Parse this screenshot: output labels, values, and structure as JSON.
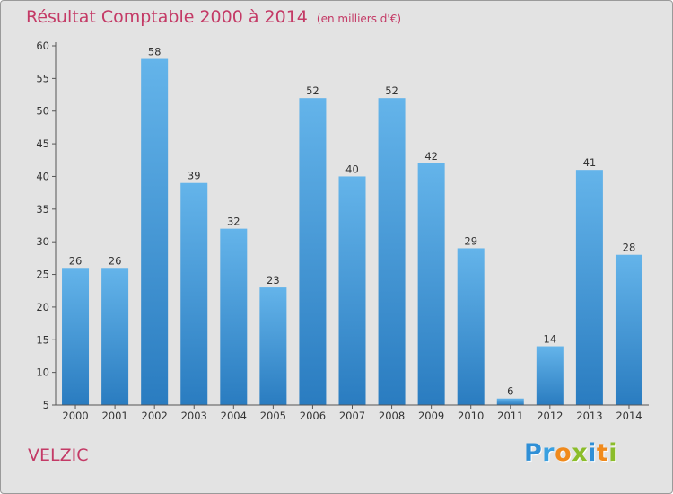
{
  "header": {
    "title": "Résultat Comptable 2000 à 2014",
    "subtitle": "(en milliers d'€)"
  },
  "entity": "VELZIC",
  "logo": {
    "letters": [
      {
        "char": "P",
        "color": "#2f8fd6"
      },
      {
        "char": "r",
        "color": "#3aa0e0"
      },
      {
        "char": "o",
        "color": "#f08a1c"
      },
      {
        "char": "x",
        "color": "#8bbd2a"
      },
      {
        "char": "i",
        "color": "#2f8fd6"
      },
      {
        "char": "t",
        "color": "#f08a1c"
      },
      {
        "char": "i",
        "color": "#8bbd2a"
      }
    ]
  },
  "colors": {
    "bar_top": "#64b4ea",
    "bar_bottom": "#2a7cc0",
    "text": "#333333",
    "accent": "#c43a66"
  },
  "chart_data": {
    "type": "bar",
    "title": "Résultat Comptable 2000 à 2014",
    "xlabel": "",
    "ylabel": "",
    "categories": [
      "2000",
      "2001",
      "2002",
      "2003",
      "2004",
      "2005",
      "2006",
      "2007",
      "2008",
      "2009",
      "2010",
      "2011",
      "2012",
      "2013",
      "2014"
    ],
    "values": [
      26,
      26,
      58,
      39,
      32,
      23,
      52,
      40,
      52,
      42,
      29,
      6,
      14,
      41,
      28
    ],
    "ylim": [
      5,
      60
    ],
    "yticks": [
      5,
      10,
      15,
      20,
      25,
      30,
      35,
      40,
      45,
      50,
      55,
      60
    ],
    "grid": false,
    "legend": "none"
  }
}
